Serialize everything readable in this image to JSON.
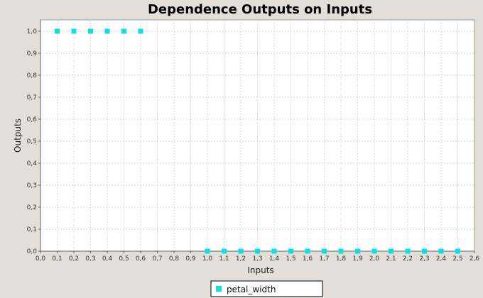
{
  "chart_data": {
    "type": "scatter",
    "title": "Dependence Outputs on Inputs",
    "xlabel": "Inputs",
    "ylabel": "Outputs",
    "xlim": [
      0.0,
      2.6
    ],
    "ylim": [
      0.0,
      1.05
    ],
    "x_ticks": [
      "0,0",
      "0,1",
      "0,2",
      "0,3",
      "0,4",
      "0,5",
      "0,6",
      "0,7",
      "0,8",
      "0,9",
      "1,0",
      "1,1",
      "1,2",
      "1,3",
      "1,4",
      "1,5",
      "1,6",
      "1,7",
      "1,8",
      "1,9",
      "2,0",
      "2,1",
      "2,2",
      "2,3",
      "2,4",
      "2,5",
      "2,6"
    ],
    "y_ticks": [
      "0,0",
      "0,1",
      "0,2",
      "0,3",
      "0,4",
      "0,5",
      "0,6",
      "0,7",
      "0,8",
      "0,9",
      "1,0"
    ],
    "grid": true,
    "legend_position": "bottom-center",
    "series": [
      {
        "name": "petal_width",
        "color": "#00e5e5",
        "marker": "square",
        "points": [
          [
            0.1,
            1.0
          ],
          [
            0.2,
            1.0
          ],
          [
            0.3,
            1.0
          ],
          [
            0.4,
            1.0
          ],
          [
            0.5,
            1.0
          ],
          [
            0.6,
            1.0
          ],
          [
            1.0,
            0.0
          ],
          [
            1.1,
            0.0
          ],
          [
            1.2,
            0.0
          ],
          [
            1.3,
            0.0
          ],
          [
            1.4,
            0.0
          ],
          [
            1.5,
            0.0
          ],
          [
            1.6,
            0.0
          ],
          [
            1.7,
            0.0
          ],
          [
            1.8,
            0.0
          ],
          [
            1.9,
            0.0
          ],
          [
            2.0,
            0.0
          ],
          [
            2.1,
            0.0
          ],
          [
            2.2,
            0.0
          ],
          [
            2.3,
            0.0
          ],
          [
            2.4,
            0.0
          ],
          [
            2.5,
            0.0
          ]
        ]
      }
    ]
  }
}
